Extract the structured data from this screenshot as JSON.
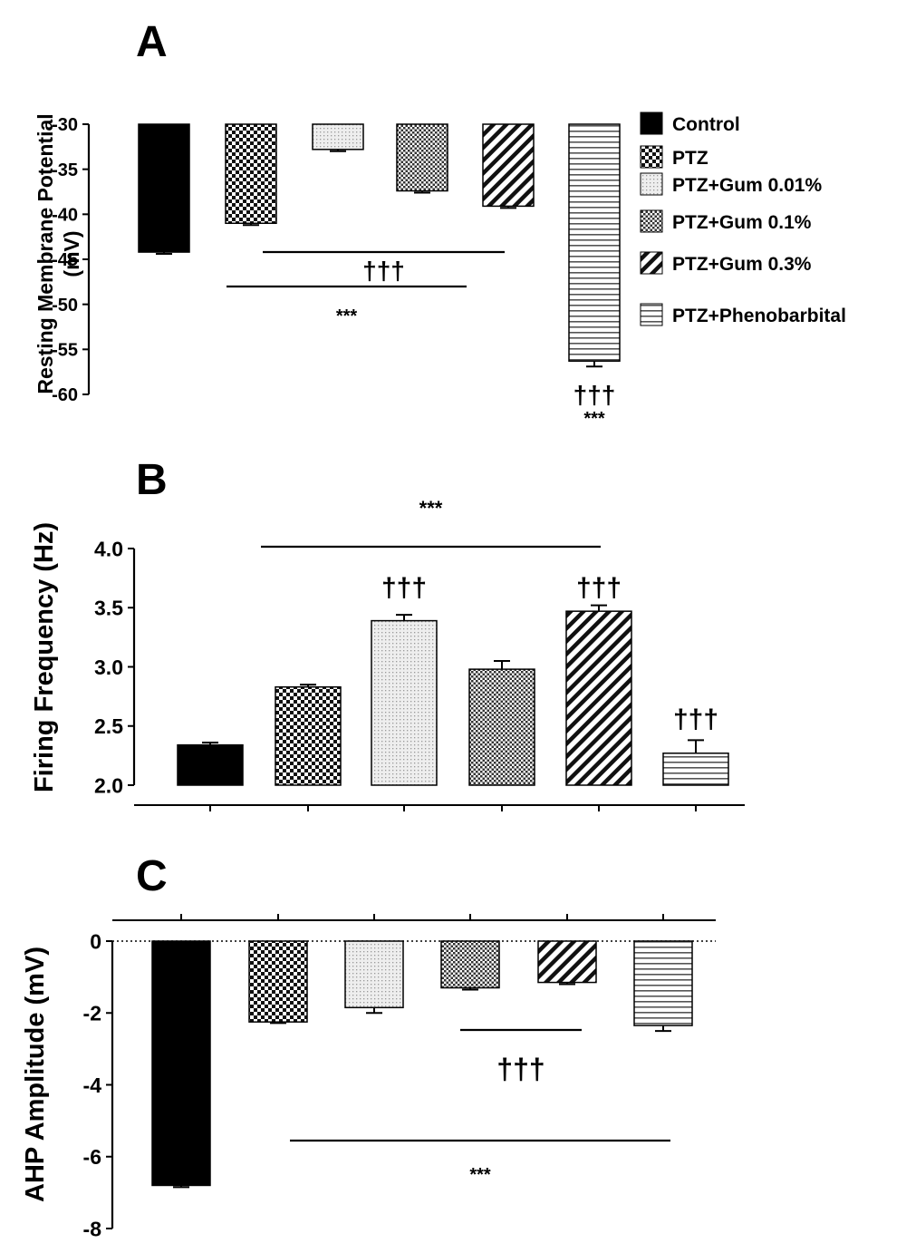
{
  "legend": {
    "items": [
      {
        "label": "Control",
        "pattern": "solid"
      },
      {
        "label": "PTZ",
        "pattern": "checker"
      },
      {
        "label": "PTZ+Gum 0.01%",
        "pattern": "fine-dots"
      },
      {
        "label": "PTZ+Gum 0.1%",
        "pattern": "small-checker"
      },
      {
        "label": "PTZ+Gum 0.3%",
        "pattern": "diagonal-stripes"
      },
      {
        "label": "PTZ+Phenobarbital",
        "pattern": "horizontal-stripes"
      }
    ]
  },
  "chart_data": [
    {
      "panel": "A",
      "type": "bar",
      "ylabel": "Resting Membrane Potential (mV)",
      "ylim": [
        -60,
        -30
      ],
      "yticks": [
        -30,
        -35,
        -40,
        -45,
        -50,
        -55,
        -60
      ],
      "baseline": -30,
      "categories": [
        "Control",
        "PTZ",
        "PTZ+Gum 0.01%",
        "PTZ+Gum 0.1%",
        "PTZ+Gum 0.3%",
        "PTZ+Phenobarbital"
      ],
      "values": [
        -44.2,
        -41.0,
        -32.8,
        -37.4,
        -39.1,
        -56.3
      ],
      "errors": [
        0.2,
        0.2,
        0.2,
        0.2,
        0.2,
        0.6
      ],
      "annotations": [
        {
          "text": "†††",
          "type": "line",
          "from_bar": 1,
          "to_bar": 4
        },
        {
          "text": "***",
          "type": "line",
          "from_bar": 1,
          "to_bar": 3
        },
        {
          "text": "†††",
          "type": "bar",
          "bar": 5
        },
        {
          "text": "***",
          "type": "bar",
          "bar": 5
        }
      ]
    },
    {
      "panel": "B",
      "type": "bar",
      "ylabel": "Firing Frequency (Hz)",
      "ylim": [
        2.0,
        4.0
      ],
      "yticks": [
        "2.0",
        "2.5",
        "3.0",
        "3.5",
        "4.0"
      ],
      "baseline": 2.0,
      "categories": [
        "Control",
        "PTZ",
        "PTZ+Gum 0.01%",
        "PTZ+Gum 0.1%",
        "PTZ+Gum 0.3%",
        "PTZ+Phenobarbital"
      ],
      "values": [
        2.34,
        2.83,
        3.39,
        2.98,
        3.47,
        2.27
      ],
      "errors": [
        0.02,
        0.02,
        0.05,
        0.07,
        0.05,
        0.11
      ],
      "annotations": [
        {
          "text": "***",
          "type": "line",
          "from_bar": 1,
          "to_bar": 4
        },
        {
          "text": "†††",
          "type": "bar",
          "bar": 2
        },
        {
          "text": "†††",
          "type": "bar",
          "bar": 4
        },
        {
          "text": "†††",
          "type": "bar",
          "bar": 5
        }
      ]
    },
    {
      "panel": "C",
      "type": "bar",
      "ylabel": "AHP Amplitude (mV)",
      "ylim": [
        -8,
        0
      ],
      "yticks": [
        0,
        -2,
        -4,
        -6,
        -8
      ],
      "baseline": 0,
      "categories": [
        "Control",
        "PTZ",
        "PTZ+Gum 0.01%",
        "PTZ+Gum 0.1%",
        "PTZ+Gum 0.3%",
        "PTZ+Phenobarbital"
      ],
      "values": [
        -6.8,
        -2.25,
        -1.85,
        -1.3,
        -1.15,
        -2.35
      ],
      "errors": [
        0.05,
        0.03,
        0.15,
        0.05,
        0.05,
        0.15
      ],
      "annotations": [
        {
          "text": "†††",
          "type": "line",
          "from_bar": 3,
          "to_bar": 4
        },
        {
          "text": "***",
          "type": "line",
          "from_bar": 1,
          "to_bar": 5
        }
      ]
    }
  ]
}
